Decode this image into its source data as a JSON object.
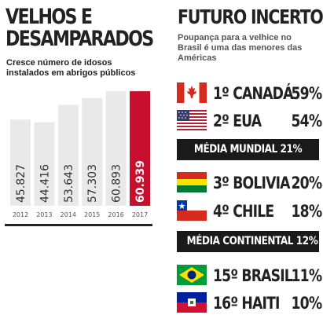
{
  "left": {
    "title_line1": "VELHOS E",
    "title_line2": "DESAMPARADOS",
    "subtitle_line1": "Cresce número de idosos",
    "subtitle_line2": "instalados em abrigos públicos"
  },
  "right": {
    "title": "FUTURO INCERTO",
    "subtitle_line1": "Poupança para a velhice no",
    "subtitle_line2": "Brasil é uma das menores das",
    "subtitle_line3": "Américas",
    "rows": [
      {
        "rank": "1º CANADÁ",
        "value": "59%",
        "flag": "canada-flag-icon"
      },
      {
        "rank": "2º EUA",
        "value": "54%",
        "flag": "usa-flag-icon"
      },
      {
        "rank": "3º BOLIVIA",
        "value": "20%",
        "flag": "bolivia-flag-icon"
      },
      {
        "rank": "4º CHILE",
        "value": "18%",
        "flag": "chile-flag-icon"
      },
      {
        "rank": "15º BRASIL",
        "value": "11%",
        "flag": "brazil-flag-icon"
      },
      {
        "rank": "16º HAITI",
        "value": "10%",
        "flag": "haiti-flag-icon"
      }
    ],
    "band_world": "MÉDIA MUNDIAL 21%",
    "band_continent": "MÉDIA CONTINENTAL 12%"
  },
  "colors": {
    "bar": "#e9e9e9",
    "highlight": "#c8102e",
    "text": "#222222"
  },
  "chart_data": [
    {
      "type": "bar",
      "title": "VELHOS E DESAMPARADOS",
      "subtitle": "Cresce número de idosos instalados em abrigos públicos",
      "categories": [
        "2012",
        "2013",
        "2014",
        "2015",
        "2016",
        "2017"
      ],
      "values": [
        45827,
        44416,
        53643,
        57303,
        60893,
        60939
      ],
      "value_labels": [
        "45.827",
        "44.416",
        "53.643",
        "57.303",
        "60.893",
        "60.939"
      ],
      "highlight_index": 5,
      "ylim": [
        0,
        66000
      ],
      "grid": false,
      "legend": "none"
    },
    {
      "type": "table",
      "title": "FUTURO INCERTO",
      "rows": [
        {
          "rank": 1,
          "country": "CANADÁ",
          "value": 59
        },
        {
          "rank": 2,
          "country": "EUA",
          "value": 54
        },
        {
          "rank": 3,
          "country": "BOLIVIA",
          "value": 20
        },
        {
          "rank": 4,
          "country": "CHILE",
          "value": 18
        },
        {
          "rank": 15,
          "country": "BRASIL",
          "value": 11
        },
        {
          "rank": 16,
          "country": "HAITI",
          "value": 10
        }
      ],
      "averages": [
        {
          "name": "MÉDIA MUNDIAL",
          "value": 21
        },
        {
          "name": "MÉDIA CONTINENTAL",
          "value": 12
        }
      ]
    }
  ]
}
